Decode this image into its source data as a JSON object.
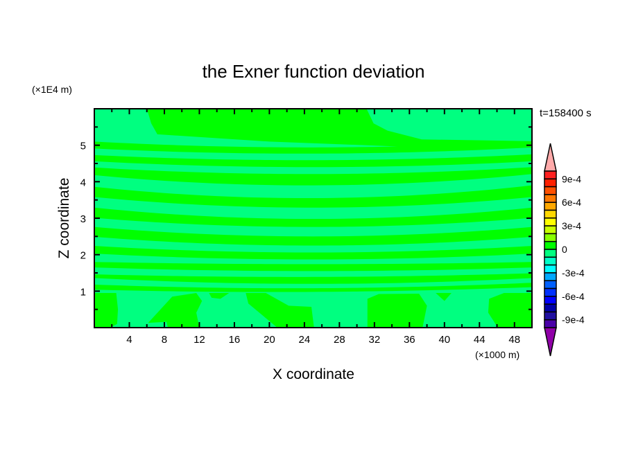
{
  "chart_data": {
    "type": "heatmap",
    "subtype": "filled-contour",
    "title": "the Exner function deviation",
    "xlabel": "X coordinate",
    "ylabel": "Z coordinate",
    "x_unit": "(×1000 m)",
    "y_unit": "(×1E4 m)",
    "time_label": "t=158400 s",
    "xlim": [
      0,
      50
    ],
    "ylim": [
      0,
      6
    ],
    "x_ticks": [
      4,
      8,
      12,
      16,
      20,
      24,
      28,
      32,
      36,
      40,
      44,
      48
    ],
    "y_ticks": [
      1,
      2,
      3,
      4,
      5
    ],
    "grid": false,
    "background_level_color": "#00FF80",
    "region_color": "#00FF00",
    "region_level_range": [
      0,
      0.0001
    ],
    "background_level_range": [
      -0.0001,
      0
    ],
    "bands": [
      {
        "x": [
          0,
          25,
          50
        ],
        "top": [
          5.1,
          4.94,
          5.11
        ],
        "bottom": [
          4.91,
          4.77,
          4.94
        ]
      },
      {
        "x": [
          0,
          25,
          50
        ],
        "top": [
          4.73,
          4.59,
          4.75
        ],
        "bottom": [
          4.56,
          4.4,
          4.56
        ]
      },
      {
        "x": [
          0,
          25,
          50
        ],
        "top": [
          4.39,
          4.21,
          4.4
        ],
        "bottom": [
          4.18,
          3.9,
          4.21
        ]
      },
      {
        "x": [
          0,
          25,
          50
        ],
        "top": [
          3.86,
          3.55,
          3.9
        ],
        "bottom": [
          3.58,
          3.29,
          3.58
        ]
      },
      {
        "x": [
          0,
          25,
          50
        ],
        "top": [
          3.29,
          2.98,
          3.29
        ],
        "bottom": [
          3.01,
          2.76,
          3.01
        ]
      },
      {
        "x": [
          0,
          25,
          50
        ],
        "top": [
          2.76,
          2.5,
          2.76
        ],
        "bottom": [
          2.49,
          2.25,
          2.49
        ]
      },
      {
        "x": [
          0,
          25,
          50
        ],
        "top": [
          2.24,
          2.06,
          2.24
        ],
        "bottom": [
          2.03,
          1.87,
          2.03
        ]
      },
      {
        "x": [
          0,
          25,
          50
        ],
        "top": [
          1.8,
          1.74,
          1.8
        ],
        "bottom": [
          1.65,
          1.55,
          1.65
        ]
      },
      {
        "x": [
          0,
          25,
          50
        ],
        "top": [
          1.46,
          1.39,
          1.49
        ],
        "bottom": [
          1.36,
          1.2,
          1.36
        ]
      },
      {
        "x": [
          0,
          25,
          50
        ],
        "top": [
          1.18,
          1.08,
          1.23
        ],
        "bottom": [
          1.04,
          0.98,
          1.11
        ]
      }
    ],
    "regions": [
      [
        [
          6.0,
          6
        ],
        [
          31.1,
          6
        ],
        [
          31.9,
          5.6
        ],
        [
          33.5,
          5.4
        ],
        [
          37.4,
          5.16
        ],
        [
          50,
          5.11
        ],
        [
          50,
          4.94
        ],
        [
          37.4,
          4.94
        ],
        [
          31,
          5.0
        ],
        [
          20,
          5.1
        ],
        [
          7.2,
          5.3
        ],
        [
          6.5,
          5.6
        ]
      ],
      [
        [
          0,
          0.95
        ],
        [
          2.5,
          0.95
        ],
        [
          2.7,
          0.5
        ],
        [
          2.6,
          0.1
        ],
        [
          1.8,
          0
        ],
        [
          0,
          0
        ]
      ],
      [
        [
          6.15,
          0.13
        ],
        [
          8.9,
          0.85
        ],
        [
          11.65,
          0.95
        ],
        [
          12.3,
          0.73
        ],
        [
          11.65,
          0.41
        ],
        [
          12.0,
          0
        ],
        [
          8.4,
          0
        ],
        [
          8.25,
          0.16
        ]
      ],
      [
        [
          13.1,
          0.95
        ],
        [
          15.4,
          0.95
        ],
        [
          14.4,
          0.79
        ],
        [
          13.4,
          0.82
        ]
      ],
      [
        [
          17.3,
          0.95
        ],
        [
          19.6,
          0.95
        ],
        [
          22.2,
          0.6
        ],
        [
          24.8,
          0.57
        ],
        [
          25.1,
          0
        ],
        [
          20.9,
          0
        ],
        [
          17.6,
          0.66
        ]
      ],
      [
        [
          31.2,
          0.79
        ],
        [
          32.5,
          0.92
        ],
        [
          37.1,
          0.93
        ],
        [
          38.0,
          0.6
        ],
        [
          37.5,
          0
        ],
        [
          31.2,
          0
        ]
      ],
      [
        [
          39.0,
          0.95
        ],
        [
          40.8,
          0.95
        ],
        [
          40.0,
          0.73
        ]
      ],
      [
        [
          45.1,
          0.79
        ],
        [
          46.8,
          0.95
        ],
        [
          50,
          0.95
        ],
        [
          50,
          0
        ],
        [
          46.1,
          0
        ],
        [
          45.0,
          0.41
        ]
      ]
    ],
    "colorbar": {
      "levels_min": -0.001,
      "levels_max": 0.001,
      "interval": 0.0001,
      "labels": [
        "9e-4",
        "6e-4",
        "3e-4",
        "0",
        "-3e-4",
        "-6e-4",
        "-9e-4"
      ],
      "label_values": [
        0.0009,
        0.0006,
        0.0003,
        0,
        -0.0003,
        -0.0006,
        -0.0009
      ],
      "over_color": "#FFAAAA",
      "under_color": "#9000A8",
      "colors": [
        "#FF2020",
        "#FF2000",
        "#FF5000",
        "#FF7800",
        "#FFA800",
        "#FFD800",
        "#FFFF00",
        "#C8FF00",
        "#88FF00",
        "#00FF00",
        "#00FF80",
        "#00FFC8",
        "#00FFFF",
        "#00A8FF",
        "#0060FF",
        "#0030FF",
        "#0000FF",
        "#0000A8",
        "#2010A0",
        "#4A00A8"
      ]
    }
  }
}
